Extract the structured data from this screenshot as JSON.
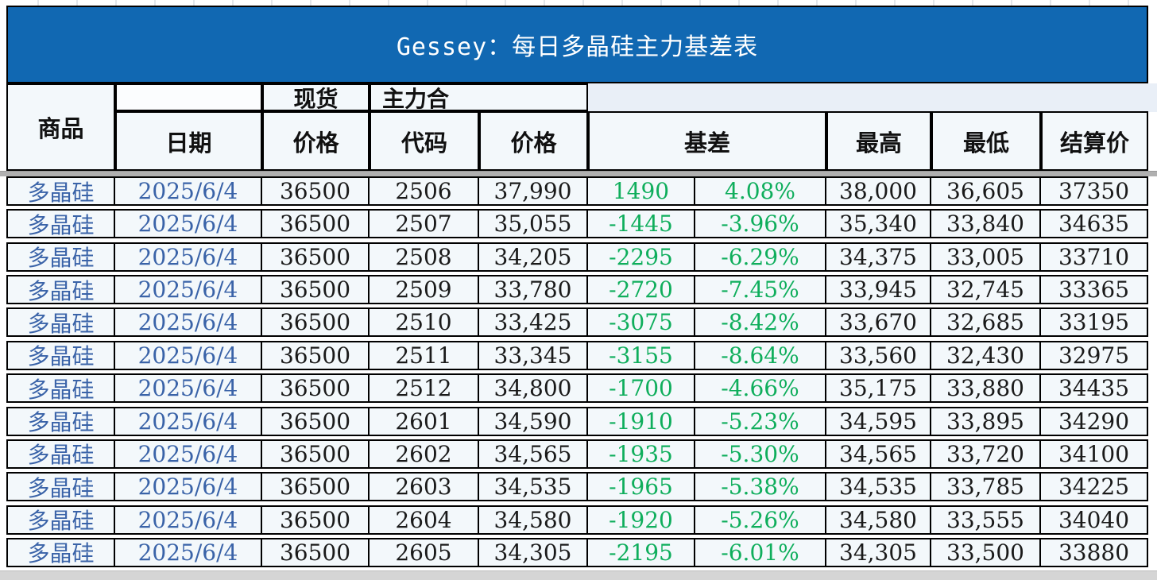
{
  "title": "Gessey：每日多晶硅主力基差表",
  "header": {
    "commodity": "商品",
    "date": "日期",
    "spot_group": "现货",
    "main_contract_group": "主力合",
    "spot_price": "价格",
    "code": "代码",
    "price": "价格",
    "basis": "基差",
    "high": "最高",
    "low": "最低",
    "settle": "结算价"
  },
  "colors": {
    "banner_blue": "#1168B2",
    "cell_bg": "#F3F8FB",
    "strip_bg": "#E9EFF7",
    "text_blue": "#3A63A8",
    "basis_green": "#0FAE5C",
    "divider_gray": "#B0B0B0",
    "scrollbar_gray": "#D5D5D5"
  },
  "rows": [
    {
      "commodity": "多晶硅",
      "date": "2025/6/4",
      "spot": "36500",
      "code": "2506",
      "price": "37,990",
      "basis": "1490",
      "basis_pct": "4.08%",
      "high": "38,000",
      "low": "36,605",
      "settle": "37350"
    },
    {
      "commodity": "多晶硅",
      "date": "2025/6/4",
      "spot": "36500",
      "code": "2507",
      "price": "35,055",
      "basis": "-1445",
      "basis_pct": "-3.96%",
      "high": "35,340",
      "low": "33,840",
      "settle": "34635"
    },
    {
      "commodity": "多晶硅",
      "date": "2025/6/4",
      "spot": "36500",
      "code": "2508",
      "price": "34,205",
      "basis": "-2295",
      "basis_pct": "-6.29%",
      "high": "34,375",
      "low": "33,005",
      "settle": "33710"
    },
    {
      "commodity": "多晶硅",
      "date": "2025/6/4",
      "spot": "36500",
      "code": "2509",
      "price": "33,780",
      "basis": "-2720",
      "basis_pct": "-7.45%",
      "high": "33,945",
      "low": "32,745",
      "settle": "33365"
    },
    {
      "commodity": "多晶硅",
      "date": "2025/6/4",
      "spot": "36500",
      "code": "2510",
      "price": "33,425",
      "basis": "-3075",
      "basis_pct": "-8.42%",
      "high": "33,670",
      "low": "32,685",
      "settle": "33195"
    },
    {
      "commodity": "多晶硅",
      "date": "2025/6/4",
      "spot": "36500",
      "code": "2511",
      "price": "33,345",
      "basis": "-3155",
      "basis_pct": "-8.64%",
      "high": "33,560",
      "low": "32,430",
      "settle": "32975"
    },
    {
      "commodity": "多晶硅",
      "date": "2025/6/4",
      "spot": "36500",
      "code": "2512",
      "price": "34,800",
      "basis": "-1700",
      "basis_pct": "-4.66%",
      "high": "35,175",
      "low": "33,880",
      "settle": "34435"
    },
    {
      "commodity": "多晶硅",
      "date": "2025/6/4",
      "spot": "36500",
      "code": "2601",
      "price": "34,590",
      "basis": "-1910",
      "basis_pct": "-5.23%",
      "high": "34,595",
      "low": "33,895",
      "settle": "34290"
    },
    {
      "commodity": "多晶硅",
      "date": "2025/6/4",
      "spot": "36500",
      "code": "2602",
      "price": "34,565",
      "basis": "-1935",
      "basis_pct": "-5.30%",
      "high": "34,565",
      "low": "33,720",
      "settle": "34100"
    },
    {
      "commodity": "多晶硅",
      "date": "2025/6/4",
      "spot": "36500",
      "code": "2603",
      "price": "34,535",
      "basis": "-1965",
      "basis_pct": "-5.38%",
      "high": "34,535",
      "low": "33,785",
      "settle": "34225"
    },
    {
      "commodity": "多晶硅",
      "date": "2025/6/4",
      "spot": "36500",
      "code": "2604",
      "price": "34,580",
      "basis": "-1920",
      "basis_pct": "-5.26%",
      "high": "34,580",
      "low": "33,555",
      "settle": "34040"
    },
    {
      "commodity": "多晶硅",
      "date": "2025/6/4",
      "spot": "36500",
      "code": "2605",
      "price": "34,305",
      "basis": "-2195",
      "basis_pct": "-6.01%",
      "high": "34,305",
      "low": "33,500",
      "settle": "33880"
    }
  ]
}
